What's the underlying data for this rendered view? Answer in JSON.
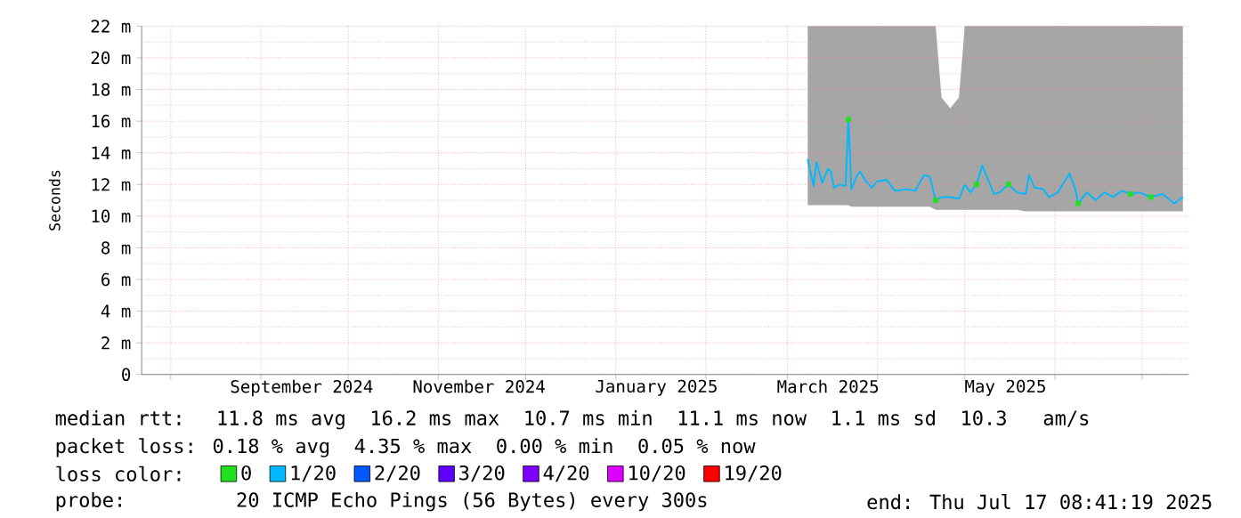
{
  "chart_data": {
    "type": "line",
    "ylabel": "Seconds",
    "xlim": [
      "2024-07-22",
      "2025-07-17"
    ],
    "xticks": [
      {
        "value": "2024-08-01",
        "label": null
      },
      {
        "value": "2024-09-01",
        "label": null
      },
      {
        "value": "2024-10-01",
        "label": null
      },
      {
        "value": "2024-11-01",
        "label": null
      },
      {
        "value": "2024-12-01",
        "label": null
      },
      {
        "value": "2025-01-01",
        "label": null
      },
      {
        "value": "2025-02-01",
        "label": null
      },
      {
        "value": "2025-03-01",
        "label": null
      },
      {
        "value": "2025-04-01",
        "label": null
      },
      {
        "value": "2025-05-01",
        "label": null
      },
      {
        "value": "2025-06-01",
        "label": null
      },
      {
        "value": "2025-07-01",
        "label": null
      },
      {
        "value": "2024-09-15",
        "label": "September 2024"
      },
      {
        "value": "2024-11-15",
        "label": "November 2024"
      },
      {
        "value": "2025-01-15",
        "label": "January 2025"
      },
      {
        "value": "2025-03-15",
        "label": "March 2025"
      },
      {
        "value": "2025-05-15",
        "label": "May 2025"
      }
    ],
    "ylim": [
      0,
      22
    ],
    "yticks": [
      0,
      {
        "value": 2,
        "label": "2 m"
      },
      {
        "value": 4,
        "label": "4 m"
      },
      {
        "value": 6,
        "label": "6 m"
      },
      {
        "value": 8,
        "label": "8 m"
      },
      {
        "value": 10,
        "label": "10 m"
      },
      {
        "value": 12,
        "label": "12 m"
      },
      {
        "value": 14,
        "label": "14 m"
      },
      {
        "value": 16,
        "label": "16 m"
      },
      {
        "value": 18,
        "label": "18 m"
      },
      {
        "value": 20,
        "label": "20 m"
      },
      {
        "value": 22,
        "label": "22 m"
      }
    ],
    "grid": true,
    "legend": "bottom",
    "legend_title": "loss color:",
    "x": [
      "2025-03-08",
      "2025-03-10",
      "2025-03-11",
      "2025-03-13",
      "2025-03-15",
      "2025-03-16",
      "2025-03-17",
      "2025-03-19",
      "2025-03-21",
      "2025-03-22",
      "2025-03-23",
      "2025-03-25",
      "2025-03-26",
      "2025-03-28",
      "2025-03-30",
      "2025-04-01",
      "2025-04-04",
      "2025-04-07",
      "2025-04-11",
      "2025-04-14",
      "2025-04-17",
      "2025-04-19",
      "2025-04-21",
      "2025-04-23",
      "2025-04-26",
      "2025-04-29",
      "2025-05-01",
      "2025-05-03",
      "2025-05-05",
      "2025-05-07",
      "2025-05-09",
      "2025-05-11",
      "2025-05-13",
      "2025-05-16",
      "2025-05-19",
      "2025-05-22",
      "2025-05-23",
      "2025-05-25",
      "2025-05-28",
      "2025-05-30",
      "2025-06-02",
      "2025-06-06",
      "2025-06-08",
      "2025-06-09",
      "2025-06-12",
      "2025-06-15",
      "2025-06-18",
      "2025-06-21",
      "2025-06-24",
      "2025-06-27",
      "2025-06-30",
      "2025-07-04",
      "2025-07-08",
      "2025-07-12",
      "2025-07-15"
    ],
    "series": [
      {
        "name": "0",
        "type": "scatter",
        "marker": "square",
        "color": "#20e020",
        "x": [
          "2025-03-22",
          "2025-04-21",
          "2025-05-05",
          "2025-05-16",
          "2025-06-09",
          "2025-06-27",
          "2025-07-04"
        ],
        "values": [
          16.1,
          11.0,
          12.0,
          12.0,
          10.8,
          11.4,
          11.2
        ]
      },
      {
        "name": "1/20",
        "color": "#00b8ff",
        "values": [
          13.6,
          11.9,
          13.4,
          12.1,
          13.0,
          12.8,
          11.8,
          12.0,
          11.9,
          16.1,
          11.7,
          12.6,
          12.8,
          12.2,
          11.8,
          12.2,
          12.3,
          11.6,
          11.7,
          11.6,
          12.6,
          12.5,
          11.0,
          11.2,
          11.2,
          11.1,
          12.0,
          11.5,
          12.0,
          13.2,
          12.3,
          11.4,
          11.5,
          12.0,
          11.5,
          11.4,
          12.6,
          11.8,
          11.7,
          11.2,
          11.5,
          12.7,
          11.7,
          10.8,
          11.5,
          11.0,
          11.5,
          11.2,
          11.6,
          11.4,
          11.5,
          11.2,
          11.4,
          10.8,
          11.2
        ],
        "lower": [
          10.7,
          10.7,
          10.7,
          10.7,
          10.7,
          10.7,
          10.7,
          10.7,
          10.7,
          10.7,
          10.6,
          10.6,
          10.6,
          10.6,
          10.6,
          10.6,
          10.6,
          10.6,
          10.6,
          10.6,
          10.6,
          10.6,
          10.4,
          10.4,
          10.4,
          10.4,
          10.4,
          10.4,
          10.4,
          10.4,
          10.4,
          10.4,
          10.4,
          10.4,
          10.4,
          10.3,
          10.3,
          10.3,
          10.3,
          10.3,
          10.3,
          10.3,
          10.3,
          10.3,
          10.3,
          10.3,
          10.3,
          10.3,
          10.3,
          10.3,
          10.3,
          10.3,
          10.3,
          10.3,
          10.3
        ],
        "upper": [
          22,
          22,
          22,
          22,
          22,
          22,
          22,
          22,
          22,
          22,
          22,
          22,
          22,
          22,
          22,
          22,
          22,
          22,
          22,
          22,
          22,
          22,
          22,
          17.5,
          16.8,
          17.5,
          22,
          22,
          22,
          22,
          22,
          22,
          22,
          22,
          22,
          22,
          22,
          22,
          22,
          22,
          22,
          22,
          22,
          22,
          22,
          22,
          22,
          22,
          22,
          22,
          22,
          22,
          22,
          22,
          22
        ]
      },
      {
        "name": "2/20",
        "color": "#0059ff",
        "values": [
          null,
          null,
          null,
          null,
          null,
          null,
          null,
          null,
          null,
          null,
          null,
          null,
          null,
          null,
          null,
          null,
          null,
          null,
          null,
          null,
          null,
          null,
          null,
          null,
          null,
          null,
          null,
          null,
          null,
          null,
          null,
          null,
          null,
          null,
          null,
          null,
          null,
          null,
          null,
          null,
          null,
          null,
          null,
          null,
          null,
          null,
          null,
          null,
          null,
          null,
          null,
          null,
          null,
          null,
          null
        ]
      },
      {
        "name": "3/20",
        "color": "#5e00ff",
        "values": [
          null,
          null,
          null,
          null,
          null,
          null,
          null,
          null,
          null,
          null,
          null,
          null,
          null,
          null,
          null,
          null,
          null,
          null,
          null,
          null,
          null,
          null,
          null,
          null,
          null,
          null,
          null,
          null,
          null,
          null,
          null,
          null,
          null,
          null,
          null,
          null,
          null,
          null,
          null,
          null,
          null,
          null,
          null,
          null,
          null,
          null,
          null,
          null,
          null,
          null,
          null,
          null,
          null,
          null,
          null
        ]
      },
      {
        "name": "4/20",
        "color": "#7e00ff",
        "values": [
          null,
          null,
          null,
          null,
          null,
          null,
          null,
          null,
          null,
          null,
          null,
          null,
          null,
          null,
          null,
          null,
          null,
          null,
          null,
          null,
          null,
          null,
          null,
          null,
          null,
          null,
          null,
          null,
          null,
          null,
          null,
          null,
          null,
          null,
          null,
          null,
          null,
          null,
          null,
          null,
          null,
          null,
          null,
          null,
          null,
          null,
          null,
          null,
          null,
          null,
          null,
          null,
          null,
          null,
          null
        ]
      },
      {
        "name": "10/20",
        "color": "#dd00ff",
        "values": [
          null,
          null,
          null,
          null,
          null,
          null,
          null,
          null,
          null,
          null,
          null,
          null,
          null,
          null,
          null,
          null,
          null,
          null,
          null,
          null,
          null,
          null,
          null,
          null,
          null,
          null,
          null,
          null,
          null,
          null,
          null,
          null,
          null,
          null,
          null,
          null,
          null,
          null,
          null,
          null,
          null,
          null,
          null,
          null,
          null,
          null,
          null,
          null,
          null,
          null,
          null,
          null,
          null,
          null,
          null
        ]
      },
      {
        "name": "19/20",
        "color": "#ff0000",
        "values": [
          null,
          null,
          null,
          null,
          null,
          null,
          null,
          null,
          null,
          null,
          null,
          null,
          null,
          null,
          null,
          null,
          null,
          null,
          null,
          null,
          null,
          null,
          null,
          null,
          null,
          null,
          null,
          null,
          null,
          null,
          null,
          null,
          null,
          null,
          null,
          null,
          null,
          null,
          null,
          null,
          null,
          null,
          null,
          null,
          null,
          null,
          null,
          null,
          null,
          null,
          null,
          null,
          null,
          null,
          null
        ]
      }
    ],
    "annotations": [
      "median rtt:  11.8 ms avg  16.2 ms max  10.7 ms min  11.1 ms now  1.1 ms sd  10.3   am/s",
      "packet loss: 0.18 % avg  4.35 % max  0.00 % min  0.05 % now",
      "probe:       20 ICMP Echo Pings (56 Bytes) every 300s",
      "end: Thu Jul 17 08:41:19 2025"
    ]
  }
}
